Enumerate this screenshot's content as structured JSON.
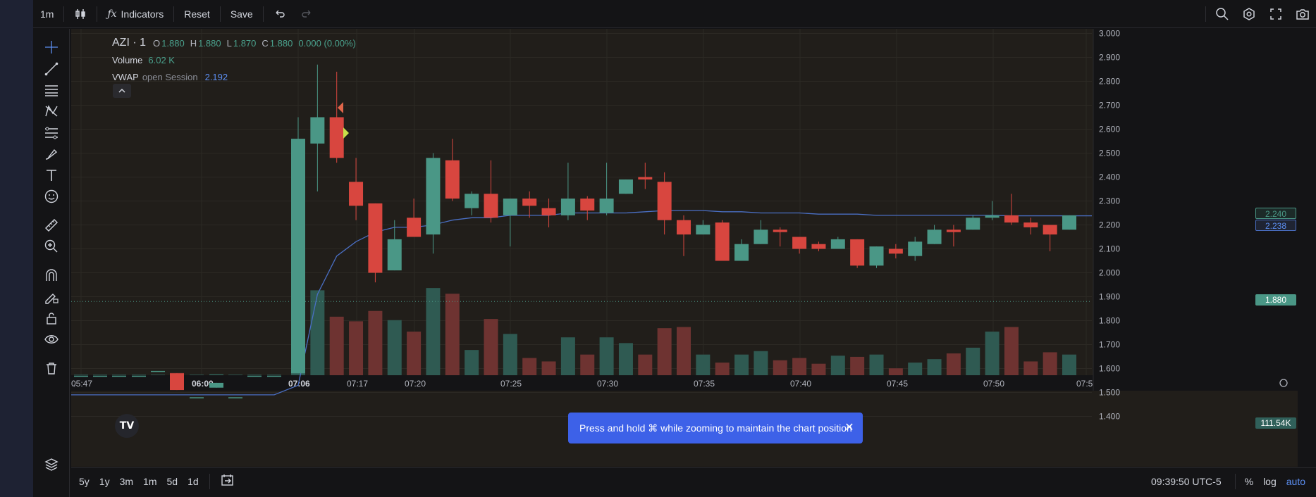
{
  "topbar": {
    "interval": "1m",
    "indicators_label": "Indicators",
    "reset_label": "Reset",
    "save_label": "Save",
    "icons": [
      "candles-icon",
      "fx-icon",
      "undo-icon",
      "redo-icon",
      "search-icon",
      "settings-icon",
      "fullscreen-icon",
      "camera-icon"
    ]
  },
  "legend": {
    "symbol": "AZI · 1",
    "ohlc": {
      "o_label": "O",
      "o": "1.880",
      "h_label": "H",
      "h": "1.880",
      "l_label": "L",
      "l": "1.870",
      "c_label": "C",
      "c": "1.880",
      "change": "0.000 (0.00%)"
    },
    "volume_label": "Volume",
    "volume_value": "6.02 K",
    "vwap_label": "VWAP",
    "vwap_params": "open Session",
    "vwap_value": "2.192"
  },
  "price_axis": {
    "ticks": [
      "3.000",
      "2.900",
      "2.800",
      "2.700",
      "2.600",
      "2.500",
      "2.400",
      "2.300",
      "2.200",
      "2.100",
      "2.000",
      "1.900",
      "1.800",
      "1.700",
      "1.600",
      "1.500",
      "1.400"
    ],
    "labels": {
      "upper": "2.240",
      "vwap": "2.238",
      "current": "1.880",
      "volume": "111.54K"
    }
  },
  "time_axis": {
    "ticks": [
      "05:47",
      "06:00",
      "07:06",
      "07:17",
      "07:20",
      "07:25",
      "07:30",
      "07:35",
      "07:40",
      "07:45",
      "07:50",
      "07:5"
    ]
  },
  "tooltip": {
    "text": "Press and hold ⌘ while zooming to maintain the chart position"
  },
  "bottombar": {
    "ranges": [
      "5y",
      "1y",
      "3m",
      "1m",
      "5d",
      "1d"
    ],
    "time": "09:39:50 UTC-5",
    "percent_label": "%",
    "log_label": "log",
    "auto_label": "auto"
  },
  "colors": {
    "up": "#4a9786",
    "down": "#d8463f",
    "vwap": "#4a6fc4",
    "bg": "#211e1a"
  },
  "chart_data": {
    "type": "candlestick",
    "symbol": "AZI",
    "interval": "1",
    "ylim": [
      1.4,
      3.0
    ],
    "candles": [
      {
        "o": 1.57,
        "h": 1.57,
        "l": 1.57,
        "c": 1.57,
        "v": 0.5
      },
      {
        "o": 1.57,
        "h": 1.57,
        "l": 1.57,
        "c": 1.57,
        "v": 0.5
      },
      {
        "o": 1.57,
        "h": 1.57,
        "l": 1.57,
        "c": 1.57,
        "v": 0.5
      },
      {
        "o": 1.57,
        "h": 1.57,
        "l": 1.57,
        "c": 1.57,
        "v": 0.5
      },
      {
        "o": 1.59,
        "h": 1.59,
        "l": 1.59,
        "c": 1.59,
        "v": 0.5
      },
      {
        "o": 1.58,
        "h": 1.58,
        "l": 1.51,
        "c": 1.51,
        "v": 2
      },
      {
        "o": 1.48,
        "h": 1.48,
        "l": 1.48,
        "c": 1.48,
        "v": 0.5
      },
      {
        "o": 1.52,
        "h": 1.54,
        "l": 1.52,
        "c": 1.54,
        "v": 1
      },
      {
        "o": 1.48,
        "h": 1.48,
        "l": 1.48,
        "c": 1.48,
        "v": 0.5
      },
      {
        "o": 1.57,
        "h": 1.57,
        "l": 1.57,
        "c": 1.57,
        "v": 0.5
      },
      {
        "o": 1.57,
        "h": 1.57,
        "l": 1.57,
        "c": 1.57,
        "v": 0.5
      },
      {
        "o": 1.58,
        "h": 2.65,
        "l": 1.58,
        "c": 2.56,
        "v": 35
      },
      {
        "o": 2.54,
        "h": 2.87,
        "l": 2.34,
        "c": 2.65,
        "v": 74
      },
      {
        "o": 2.65,
        "h": 2.84,
        "l": 2.46,
        "c": 2.48,
        "v": 51
      },
      {
        "o": 2.38,
        "h": 2.48,
        "l": 2.22,
        "c": 2.28,
        "v": 47
      },
      {
        "o": 2.29,
        "h": 2.29,
        "l": 1.96,
        "c": 2.0,
        "v": 56
      },
      {
        "o": 2.01,
        "h": 2.22,
        "l": 2.01,
        "c": 2.14,
        "v": 48
      },
      {
        "o": 2.23,
        "h": 2.31,
        "l": 2.16,
        "c": 2.15,
        "v": 38
      },
      {
        "o": 2.16,
        "h": 2.5,
        "l": 2.08,
        "c": 2.48,
        "v": 76
      },
      {
        "o": 2.47,
        "h": 2.56,
        "l": 2.3,
        "c": 2.31,
        "v": 71
      },
      {
        "o": 2.27,
        "h": 2.34,
        "l": 2.24,
        "c": 2.33,
        "v": 22
      },
      {
        "o": 2.33,
        "h": 2.47,
        "l": 2.21,
        "c": 2.23,
        "v": 49
      },
      {
        "o": 2.24,
        "h": 2.31,
        "l": 2.11,
        "c": 2.31,
        "v": 36
      },
      {
        "o": 2.31,
        "h": 2.34,
        "l": 2.23,
        "c": 2.28,
        "v": 15
      },
      {
        "o": 2.27,
        "h": 2.31,
        "l": 2.19,
        "c": 2.24,
        "v": 12
      },
      {
        "o": 2.24,
        "h": 2.46,
        "l": 2.22,
        "c": 2.31,
        "v": 33
      },
      {
        "o": 2.31,
        "h": 2.32,
        "l": 2.22,
        "c": 2.26,
        "v": 18
      },
      {
        "o": 2.25,
        "h": 2.46,
        "l": 2.24,
        "c": 2.31,
        "v": 33
      },
      {
        "o": 2.33,
        "h": 2.39,
        "l": 2.33,
        "c": 2.39,
        "v": 28
      },
      {
        "o": 2.4,
        "h": 2.46,
        "l": 2.35,
        "c": 2.39,
        "v": 18
      },
      {
        "o": 2.38,
        "h": 2.42,
        "l": 2.16,
        "c": 2.22,
        "v": 41
      },
      {
        "o": 2.22,
        "h": 2.24,
        "l": 2.07,
        "c": 2.16,
        "v": 42
      },
      {
        "o": 2.16,
        "h": 2.22,
        "l": 2.16,
        "c": 2.2,
        "v": 18
      },
      {
        "o": 2.21,
        "h": 2.22,
        "l": 2.05,
        "c": 2.05,
        "v": 11
      },
      {
        "o": 2.05,
        "h": 2.14,
        "l": 2.05,
        "c": 2.12,
        "v": 18
      },
      {
        "o": 2.12,
        "h": 2.22,
        "l": 2.12,
        "c": 2.18,
        "v": 21
      },
      {
        "o": 2.18,
        "h": 2.19,
        "l": 2.11,
        "c": 2.17,
        "v": 13
      },
      {
        "o": 2.15,
        "h": 2.15,
        "l": 2.08,
        "c": 2.1,
        "v": 15
      },
      {
        "o": 2.12,
        "h": 2.13,
        "l": 2.09,
        "c": 2.1,
        "v": 10
      },
      {
        "o": 2.1,
        "h": 2.15,
        "l": 2.1,
        "c": 2.14,
        "v": 17
      },
      {
        "o": 2.14,
        "h": 2.14,
        "l": 2.02,
        "c": 2.03,
        "v": 16
      },
      {
        "o": 2.03,
        "h": 2.11,
        "l": 2.02,
        "c": 2.11,
        "v": 18
      },
      {
        "o": 2.1,
        "h": 2.12,
        "l": 2.06,
        "c": 2.08,
        "v": 6
      },
      {
        "o": 2.07,
        "h": 2.15,
        "l": 2.05,
        "c": 2.13,
        "v": 11
      },
      {
        "o": 2.12,
        "h": 2.2,
        "l": 2.12,
        "c": 2.18,
        "v": 14
      },
      {
        "o": 2.18,
        "h": 2.2,
        "l": 2.11,
        "c": 2.17,
        "v": 19
      },
      {
        "o": 2.18,
        "h": 2.24,
        "l": 2.18,
        "c": 2.23,
        "v": 24
      },
      {
        "o": 2.23,
        "h": 2.3,
        "l": 2.22,
        "c": 2.24,
        "v": 38
      },
      {
        "o": 2.24,
        "h": 2.33,
        "l": 2.2,
        "c": 2.21,
        "v": 42
      },
      {
        "o": 2.21,
        "h": 2.23,
        "l": 2.16,
        "c": 2.19,
        "v": 12
      },
      {
        "o": 2.2,
        "h": 2.2,
        "l": 2.09,
        "c": 2.16,
        "v": 20
      },
      {
        "o": 2.18,
        "h": 2.24,
        "l": 2.18,
        "c": 2.24,
        "v": 18
      }
    ],
    "vwap": [
      1.49,
      1.49,
      1.49,
      1.49,
      1.49,
      1.49,
      1.49,
      1.49,
      1.49,
      1.49,
      1.49,
      1.53,
      1.91,
      2.07,
      2.13,
      2.17,
      2.19,
      2.19,
      2.2,
      2.22,
      2.23,
      2.23,
      2.24,
      2.24,
      2.24,
      2.25,
      2.25,
      2.25,
      2.25,
      2.255,
      2.26,
      2.26,
      2.26,
      2.255,
      2.255,
      2.25,
      2.25,
      2.25,
      2.245,
      2.245,
      2.245,
      2.24,
      2.24,
      2.24,
      2.24,
      2.24,
      2.24,
      2.24,
      2.238,
      2.238,
      2.238,
      2.238
    ],
    "current_price": 1.88
  }
}
